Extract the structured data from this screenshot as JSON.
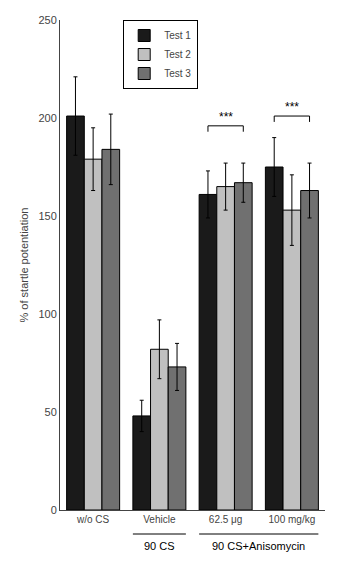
{
  "chart_data": {
    "type": "bar",
    "categories": [
      "w/o CS",
      "Vehicle",
      "62.5 μg",
      "100 mg/kg"
    ],
    "series": [
      {
        "name": "Test 1",
        "color": "#1a1a1a",
        "values": [
          201,
          48,
          161,
          175
        ],
        "errors": [
          20,
          8,
          12,
          15
        ]
      },
      {
        "name": "Test 2",
        "color": "#c0c0c0",
        "values": [
          179,
          82,
          165,
          153
        ],
        "errors": [
          16,
          15,
          12,
          18
        ]
      },
      {
        "name": "Test 3",
        "color": "#707070",
        "values": [
          184,
          73,
          167,
          163
        ],
        "errors": [
          18,
          12,
          10,
          14
        ]
      }
    ],
    "ylabel": "% of startle potentiation",
    "ylim": [
      0,
      250
    ],
    "yticks": [
      0,
      50,
      100,
      150,
      200,
      250
    ],
    "grid": false,
    "legend": "upper center",
    "annotations": [
      {
        "text": "***",
        "category": "62.5 μg",
        "y": 193
      },
      {
        "text": "***",
        "category": "100 mg/kg",
        "y": 198
      }
    ],
    "category_groups": [
      {
        "label": "90 CS",
        "categories": [
          "Vehicle"
        ]
      },
      {
        "label": "90 CS+Anisomycin",
        "categories": [
          "62.5 μg",
          "100 mg/kg"
        ]
      }
    ]
  }
}
